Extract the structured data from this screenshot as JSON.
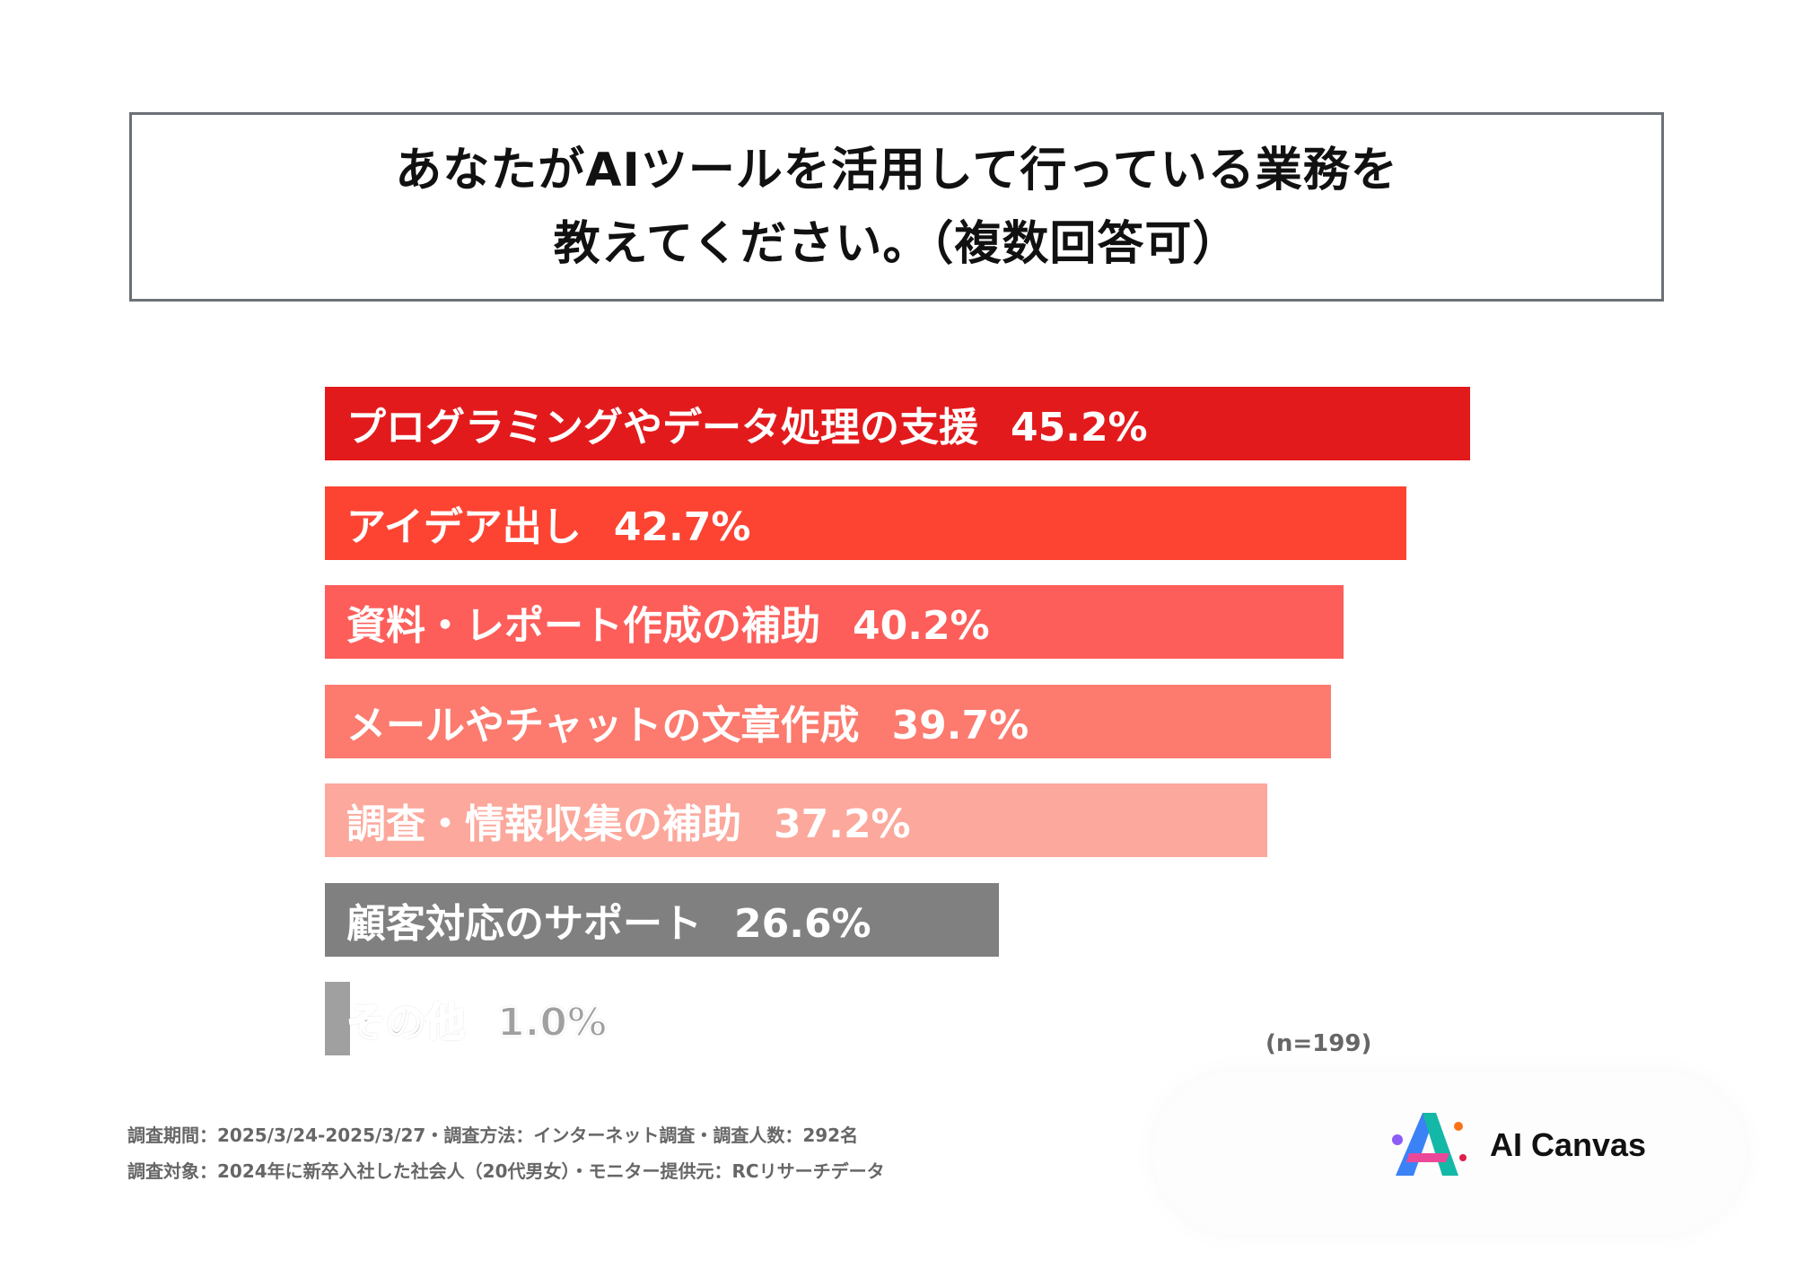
{
  "title": {
    "line1": "あなたがAIツールを活用して行っている業務を",
    "line2": "教えてください。（複数回答可）"
  },
  "chart_data": {
    "type": "bar",
    "orientation": "horizontal",
    "title": "あなたがAIツールを活用して行っている業務を教えてください。（複数回答可）",
    "categories": [
      "プログラミングやデータ処理の支援",
      "アイデア出し",
      "資料・レポート作成の補助",
      "メールやチャットの文章作成",
      "調査・情報収集の補助",
      "顧客対応のサポート",
      "その他"
    ],
    "values": [
      45.2,
      42.7,
      40.2,
      39.7,
      37.2,
      26.6,
      1.0
    ],
    "value_labels": [
      "45.2%",
      "42.7%",
      "40.2%",
      "39.7%",
      "37.2%",
      "26.6%",
      "1.0%"
    ],
    "colors": [
      "#e31a1c",
      "#fd4433",
      "#fd5e5a",
      "#fc7a6e",
      "#fca89c",
      "#808080",
      "#a0a0a0"
    ],
    "unit": "%",
    "xlim": [
      0,
      45.2
    ]
  },
  "sample_size": "(n=199)",
  "notes": {
    "line1": "調査期間：2025/3/24-2025/3/27・調査方法：インターネット調査・調査人数：292名",
    "line2": "調査対象：2024年に新卒入社した社会人（20代男女）・モニター提供元：RCリサーチデータ"
  },
  "logo": {
    "text": "AI Canvas"
  }
}
